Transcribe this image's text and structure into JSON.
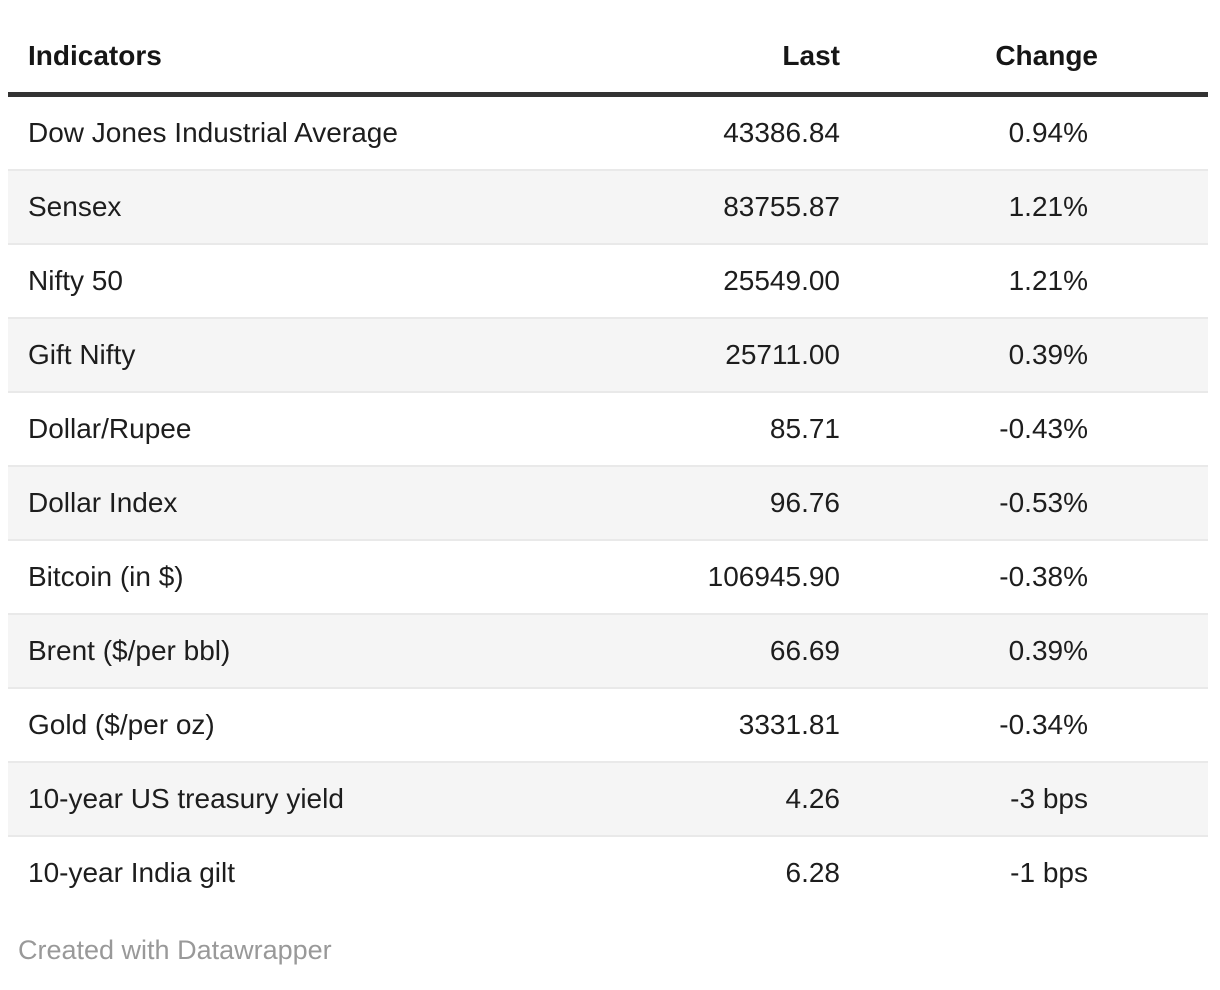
{
  "chart_data": {
    "type": "table",
    "title": "",
    "columns": [
      "Indicators",
      "Last",
      "Change"
    ],
    "rows": [
      [
        "Dow Jones Industrial Average",
        "43386.84",
        "0.94%"
      ],
      [
        "Sensex",
        "83755.87",
        "1.21%"
      ],
      [
        "Nifty 50",
        "25549.00",
        "1.21%"
      ],
      [
        "Gift Nifty",
        "25711.00",
        "0.39%"
      ],
      [
        "Dollar/Rupee",
        "85.71",
        "-0.43%"
      ],
      [
        "Dollar Index",
        "96.76",
        "-0.53%"
      ],
      [
        "Bitcoin (in $)",
        "106945.90",
        "-0.38%"
      ],
      [
        "Brent ($/per bbl)",
        "66.69",
        "0.39%"
      ],
      [
        "Gold ($/per oz)",
        "3331.81",
        "-0.34%"
      ],
      [
        "10-year US treasury yield",
        "4.26",
        "-3 bps"
      ],
      [
        "10-year India gilt",
        "6.28",
        "-1 bps"
      ]
    ],
    "layout": {
      "striped_rows": true,
      "stripe_on": "even",
      "value_columns_align": "right"
    }
  },
  "footer": {
    "credit": "Created with Datawrapper"
  },
  "colors": {
    "stripe": "#f5f5f5",
    "row_separator": "#e9e9e9",
    "header_rule": "#333333",
    "text": "#1d1d1d",
    "header_text": "#161616",
    "credit_text": "#999999",
    "background": "#ffffff"
  }
}
